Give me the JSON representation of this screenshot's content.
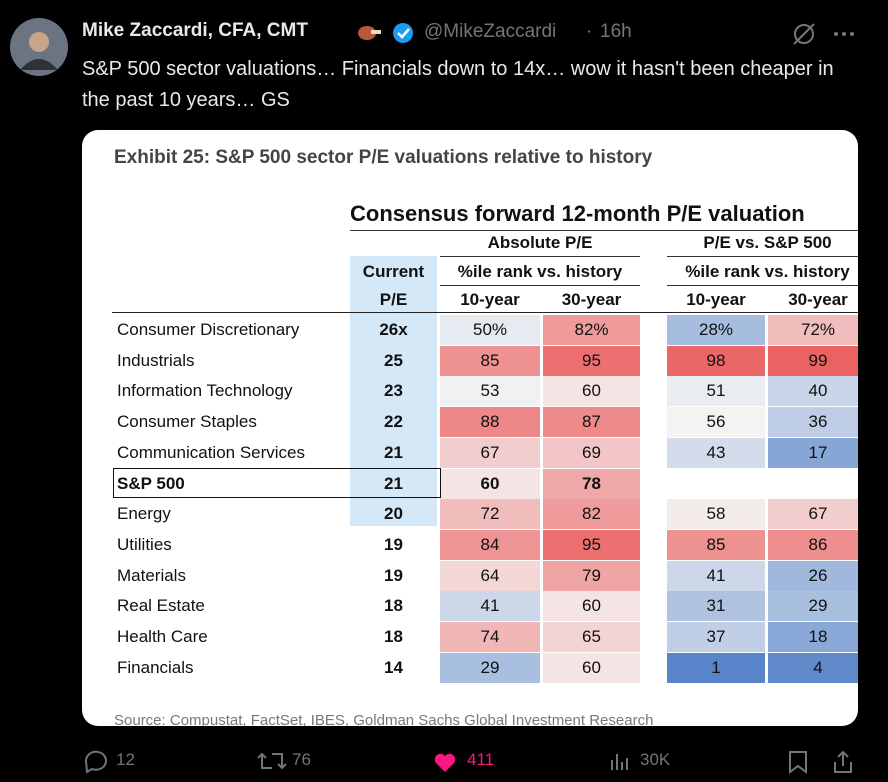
{
  "tweet": {
    "author": "Mike Zaccardi, CFA, CMT",
    "handle": "@MikeZaccardi",
    "separator": "·",
    "time": "16h",
    "text": "S&P 500 sector valuations… Financials down to 14x… wow it hasn't been cheaper in the past 10 years… GS"
  },
  "table": {
    "exhibit_title": "Exhibit 25: S&P 500 sector P/E valuations relative to history",
    "header": "Consensus forward 12-month P/E valuation",
    "current_header": [
      "Current",
      "P/E"
    ],
    "groups": [
      "Absolute P/E",
      "P/E vs. S&P 500"
    ],
    "subheader": "%ile rank vs. history",
    "columns": [
      "10-year",
      "30-year",
      "10-year",
      "30-year"
    ],
    "rows": [
      [
        "Consumer Discretionary",
        "26x",
        "50%",
        "82%",
        "28%",
        "72%"
      ],
      [
        "Industrials",
        "25",
        "85",
        "95",
        "98",
        "99"
      ],
      [
        "Information Technology",
        "23",
        "53",
        "60",
        "51",
        "40"
      ],
      [
        "Consumer Staples",
        "22",
        "88",
        "87",
        "56",
        "36"
      ],
      [
        "Communication Services",
        "21",
        "67",
        "69",
        "43",
        "17"
      ],
      [
        "S&P 500",
        "21",
        "60",
        "78",
        null,
        null
      ],
      [
        "Energy",
        "20",
        "72",
        "82",
        "58",
        "67"
      ],
      [
        "Utilities",
        "19",
        "84",
        "95",
        "85",
        "86"
      ],
      [
        "Materials",
        "19",
        "64",
        "79",
        "41",
        "26"
      ],
      [
        "Real Estate",
        "18",
        "41",
        "60",
        "31",
        "29"
      ],
      [
        "Health Care",
        "18",
        "74",
        "65",
        "37",
        "18"
      ],
      [
        "Financials",
        "14",
        "29",
        "60",
        "1",
        "4"
      ]
    ],
    "source": "Source: Compustat, FactSet, IBES, Goldman Sachs Global Investment Research"
  },
  "actions": {
    "replies": "12",
    "reposts": "76",
    "likes": "411",
    "views": "30K"
  }
}
